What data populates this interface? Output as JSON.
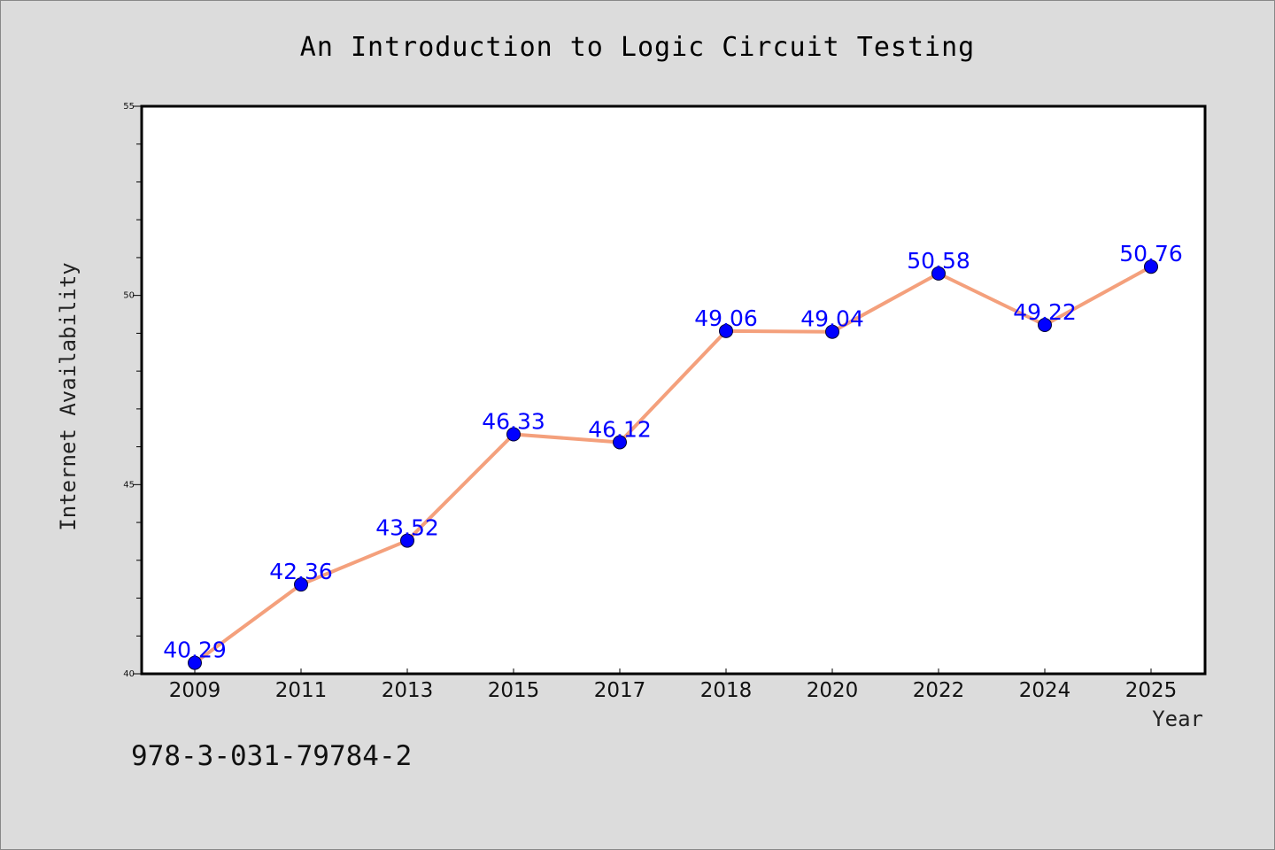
{
  "colors": {
    "background": "#dcdcdc",
    "plot_background": "#ffffff",
    "line": "#f4a07c",
    "marker": "#0000ff",
    "data_label": "#0000ff"
  },
  "footer": {
    "isbn": "978-3-031-79784-2"
  },
  "chart_data": {
    "type": "line",
    "title": "An Introduction to Logic Circuit Testing",
    "xlabel": "Year",
    "ylabel": "Internet Availability",
    "categories": [
      "2009",
      "2011",
      "2013",
      "2015",
      "2017",
      "2018",
      "2020",
      "2022",
      "2024",
      "2025"
    ],
    "series": [
      {
        "values": [
          40.29,
          42.36,
          43.52,
          46.33,
          46.12,
          49.06,
          49.04,
          50.58,
          49.22,
          50.76
        ],
        "labels": [
          "40.29",
          "42.36",
          "43.52",
          "46.33",
          "46.12",
          "49.06",
          "49.04",
          "50.58",
          "49.22",
          "50.76"
        ]
      }
    ],
    "ylim": [
      40,
      55
    ],
    "yticks": [
      "40",
      "45",
      "50",
      "55"
    ],
    "minor_yticks_per_major": 5,
    "grid": false,
    "legend": "none",
    "marker": "circle"
  }
}
